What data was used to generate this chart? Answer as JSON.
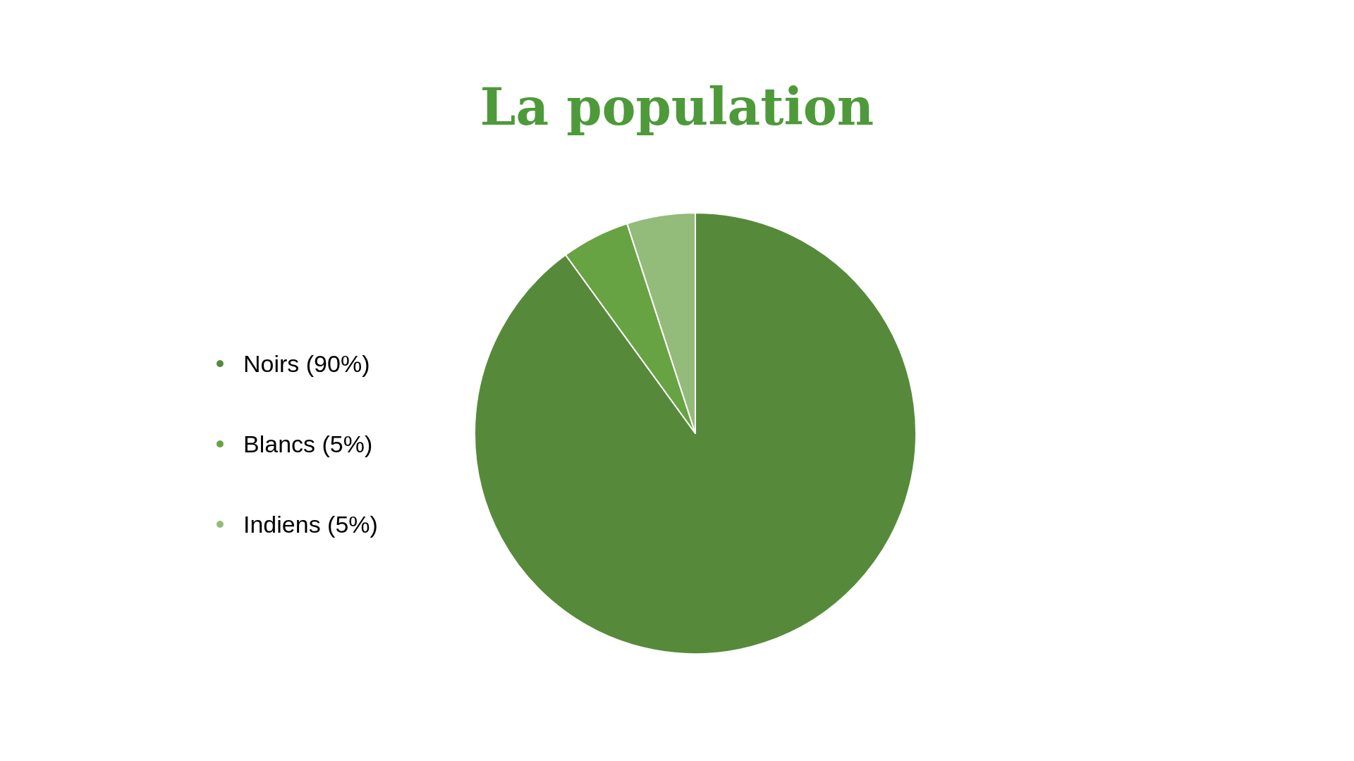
{
  "chart_data": {
    "type": "pie",
    "title": "La population",
    "categories": [
      "Noirs (90%)",
      "Blancs (5%)",
      "Indiens (5%)"
    ],
    "values": [
      90,
      5,
      5
    ],
    "colors": [
      "#568a3a",
      "#67a342",
      "#93bb7a"
    ],
    "legend": "left"
  }
}
